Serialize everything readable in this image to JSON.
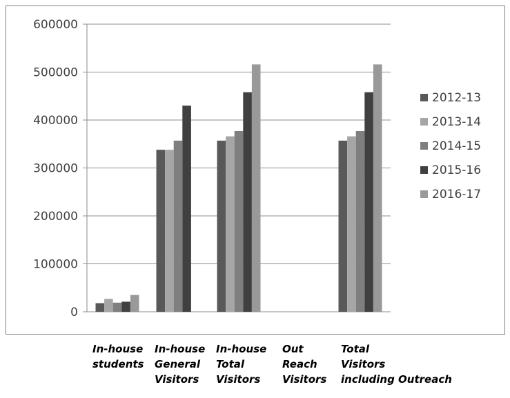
{
  "chart_data": {
    "type": "bar",
    "categories": [
      [
        "In-house",
        "students"
      ],
      [
        "In-house",
        "General",
        "Visitors"
      ],
      [
        "In-house",
        "Total",
        "Visitors"
      ],
      [
        "Out",
        "Reach",
        "Visitors"
      ],
      [
        "Total",
        "Visitors",
        "including Outreach"
      ]
    ],
    "series": [
      {
        "name": "2012-13",
        "color": "#595959",
        "values": [
          18000,
          338000,
          357000,
          0,
          357000
        ]
      },
      {
        "name": "2013-14",
        "color": "#a6a6a6",
        "values": [
          27000,
          338000,
          366000,
          0,
          366000
        ]
      },
      {
        "name": "2014-15",
        "color": "#7f7f7f",
        "values": [
          19000,
          357000,
          377000,
          0,
          377000
        ]
      },
      {
        "name": "2015-16",
        "color": "#404040",
        "values": [
          21000,
          430000,
          458000,
          0,
          458000
        ]
      },
      {
        "name": "2016-17",
        "color": "#999999",
        "values": [
          35000,
          0,
          516000,
          0,
          516000
        ]
      }
    ],
    "yticks": [
      "0",
      "100000",
      "200000",
      "300000",
      "400000",
      "500000",
      "600000"
    ],
    "ylim": [
      0,
      600000
    ],
    "grid": true,
    "legend": "right"
  }
}
